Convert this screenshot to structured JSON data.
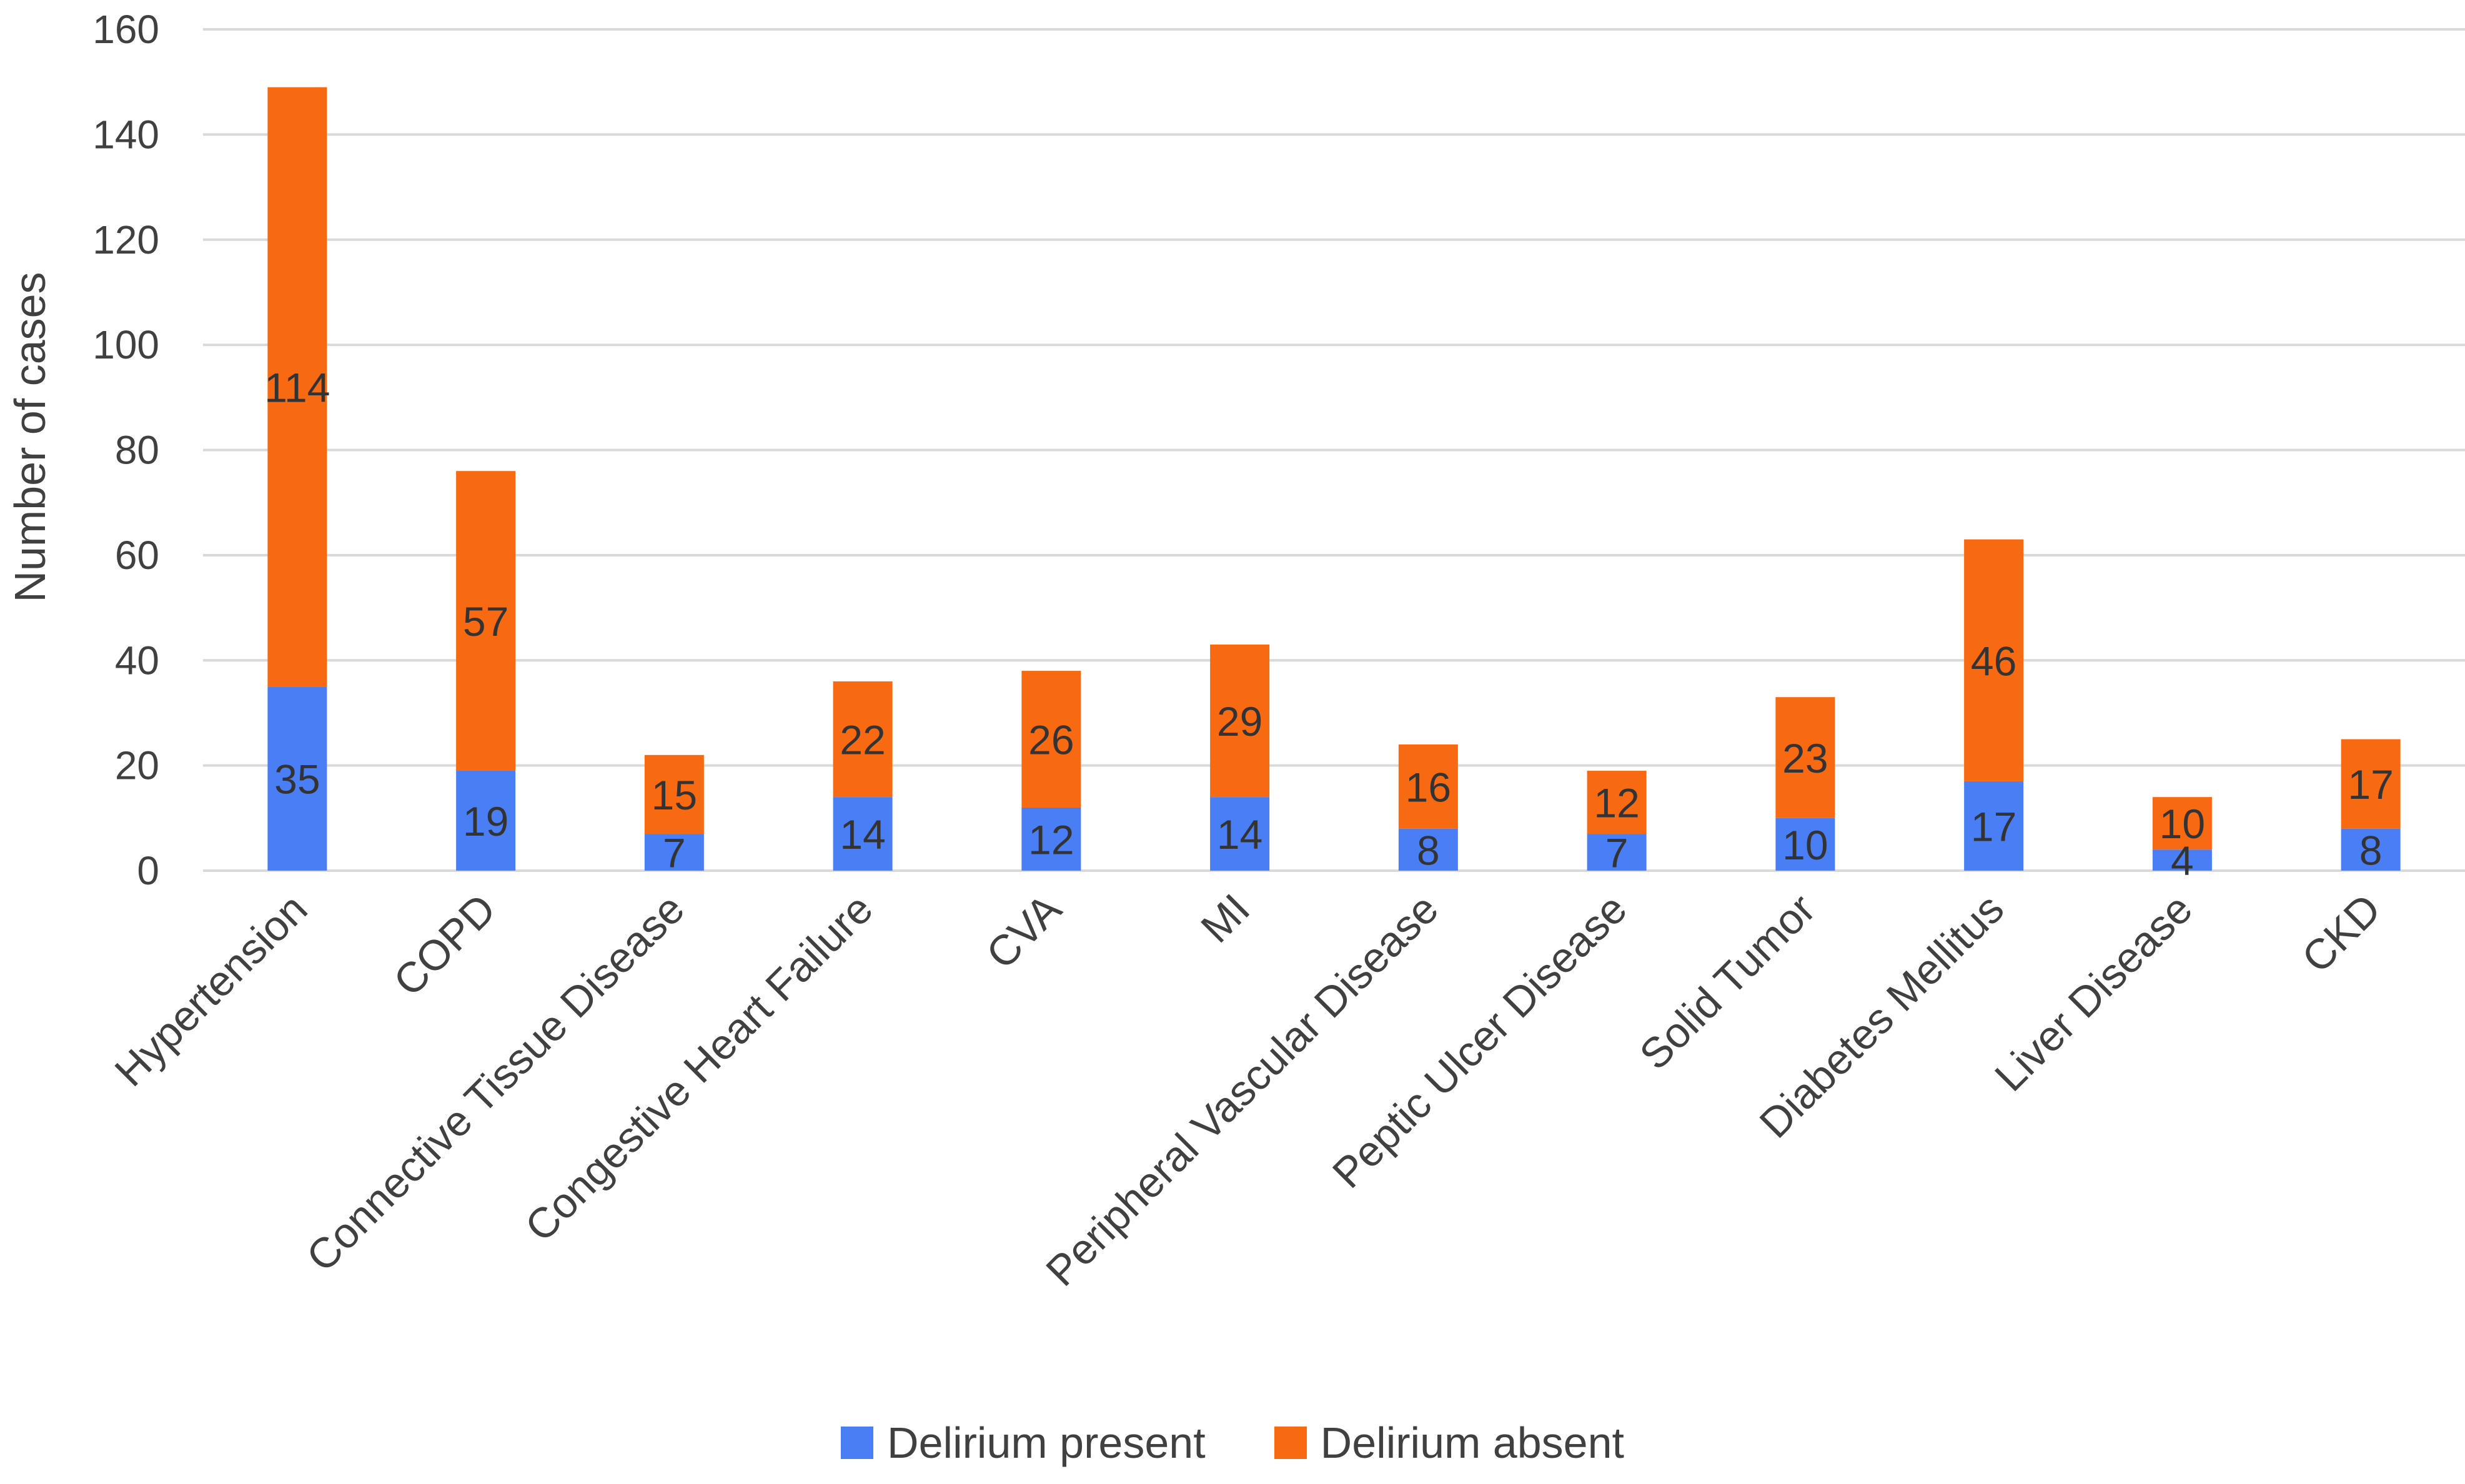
{
  "chart_data": {
    "type": "bar",
    "stacked": true,
    "categories": [
      "Hypertension",
      "COPD",
      "Connective Tissue Disease",
      "Congestive Heart Failure",
      "CVA",
      "MI",
      "Peripheral Vascular Disease",
      "Peptic Ulcer Disease",
      "Solid Tumor",
      "Diabetes Mellitus",
      "Liver Disease",
      "CKD"
    ],
    "series": [
      {
        "name": "Delirium present",
        "color": "#4a7ef5",
        "values": [
          35,
          19,
          7,
          14,
          12,
          14,
          8,
          7,
          10,
          17,
          4,
          8
        ]
      },
      {
        "name": "Delirium absent",
        "color": "#f76a12",
        "values": [
          114,
          57,
          15,
          22,
          26,
          29,
          16,
          12,
          23,
          46,
          10,
          17
        ]
      }
    ],
    "ylabel": "Number of cases",
    "ylim": [
      0,
      160
    ],
    "yticks": [
      0,
      20,
      40,
      60,
      80,
      100,
      120,
      140,
      160
    ],
    "grid": true,
    "legend_position": "bottom"
  }
}
